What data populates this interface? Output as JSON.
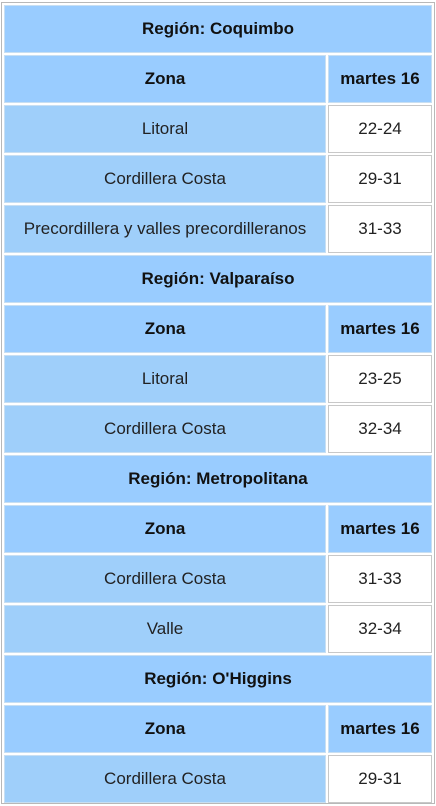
{
  "sections": [
    {
      "title": "Región: Coquimbo",
      "header": [
        "Zona",
        "martes 16"
      ],
      "rows": [
        [
          "Litoral",
          "22-24"
        ],
        [
          "Cordillera Costa",
          "29-31"
        ],
        [
          "Precordillera y valles precordilleranos",
          "31-33"
        ]
      ]
    },
    {
      "title": "Región: Valparaíso",
      "header": [
        "Zona",
        "martes 16"
      ],
      "rows": [
        [
          "Litoral",
          "23-25"
        ],
        [
          "Cordillera Costa",
          "32-34"
        ]
      ]
    },
    {
      "title": "Región: Metropolitana",
      "header": [
        "Zona",
        "martes 16"
      ],
      "rows": [
        [
          "Cordillera Costa",
          "31-33"
        ],
        [
          "Valle",
          "32-34"
        ]
      ]
    },
    {
      "title": "Región: O'Higgins",
      "header": [
        "Zona",
        "martes 16"
      ],
      "rows": [
        [
          "Cordillera Costa",
          "29-31"
        ]
      ]
    }
  ]
}
